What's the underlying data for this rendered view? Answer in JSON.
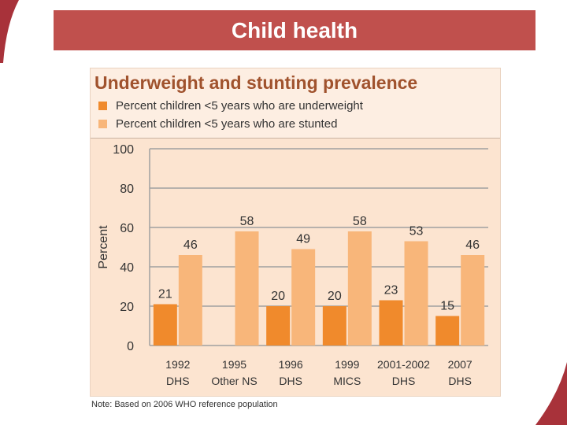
{
  "slide": {
    "title": "Child health",
    "footnote": "Note: Based on 2006 WHO reference population"
  },
  "colors": {
    "banner": "#c0504d",
    "underweight": "#f08a2c",
    "stunted": "#f8b67a",
    "panel": "#fce4d0"
  },
  "chart_data": {
    "type": "bar",
    "title": "Underweight and stunting prevalence",
    "ylabel": "Percent",
    "xlabel": "",
    "ylim": [
      0,
      100
    ],
    "yticks": [
      0,
      20,
      40,
      60,
      80,
      100
    ],
    "grid": true,
    "legend_position": "top",
    "categories": [
      [
        "1992",
        "DHS"
      ],
      [
        "1995",
        "Other NS"
      ],
      [
        "1996",
        "DHS"
      ],
      [
        "1999",
        "MICS"
      ],
      [
        "2001-2002",
        "DHS"
      ],
      [
        "2007",
        "DHS"
      ]
    ],
    "series": [
      {
        "name": "Percent children <5 years who are underweight",
        "color": "#f08a2c",
        "values": [
          21,
          null,
          20,
          20,
          23,
          15
        ]
      },
      {
        "name": "Percent children <5 years who are stunted",
        "color": "#f8b67a",
        "values": [
          46,
          58,
          49,
          58,
          53,
          46
        ]
      }
    ]
  }
}
